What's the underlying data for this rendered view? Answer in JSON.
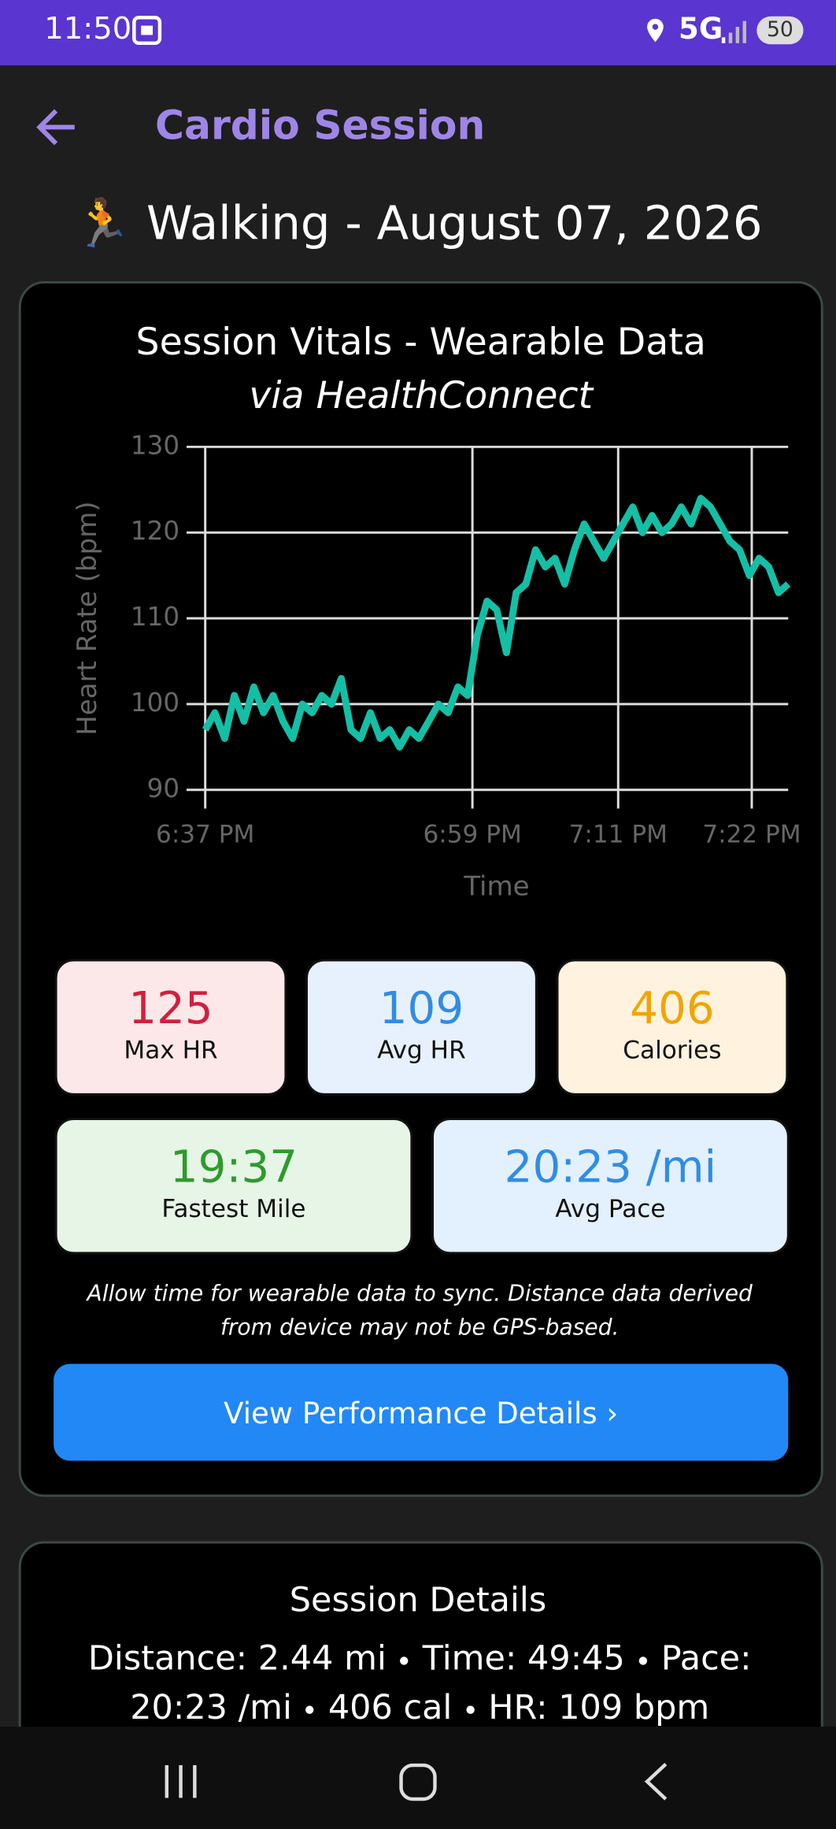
{
  "status_bar": {
    "time": "11:50",
    "network": "5G",
    "battery": "50"
  },
  "header": {
    "title": "Cardio Session"
  },
  "page_title": "🏃 Walking - August 07, 2026",
  "chart_data": {
    "type": "line",
    "title": "Session Vitals - Wearable Data",
    "subtitle": "via HealthConnect",
    "x_label": "Time",
    "y_label": "Heart Rate (bpm)",
    "color": "#14bfa6",
    "grid": true,
    "x": [
      1117,
      1117.8,
      1118.6,
      1119.4,
      1120.2,
      1121,
      1121.8,
      1122.6,
      1123.4,
      1124.2,
      1125,
      1125.8,
      1126.6,
      1127.4,
      1128.2,
      1129,
      1129.8,
      1130.6,
      1131.4,
      1132.2,
      1133,
      1133.8,
      1134.6,
      1135.4,
      1136.2,
      1137,
      1137.8,
      1138.6,
      1139.4,
      1140.2,
      1141,
      1141.8,
      1142.6,
      1143.4,
      1144.2,
      1145,
      1145.8,
      1146.6,
      1147.4,
      1148.2,
      1149,
      1149.8,
      1150.6,
      1151.4,
      1152.2,
      1153,
      1153.8,
      1154.6,
      1155.4,
      1156.2,
      1157,
      1157.8,
      1158.6,
      1159.4,
      1160.2,
      1161,
      1161.8,
      1162.6,
      1163.4,
      1164.2,
      1165
    ],
    "values": [
      97,
      99,
      96,
      101,
      98,
      102,
      99,
      101,
      98,
      96,
      100,
      99,
      101,
      100,
      103,
      97,
      96,
      99,
      96,
      97,
      95,
      97,
      96,
      98,
      100,
      99,
      102,
      101,
      108,
      112,
      111,
      106,
      113,
      114,
      118,
      116,
      117,
      114,
      118,
      121,
      119,
      117,
      119,
      121,
      123,
      120,
      122,
      120,
      121,
      123,
      121,
      124,
      123,
      121,
      119,
      118,
      115,
      117,
      116,
      113,
      114
    ],
    "xlim": [
      1117,
      1165
    ],
    "xticks": [
      {
        "value": 1117,
        "label": "6:37 PM"
      },
      {
        "value": 1139,
        "label": "6:59 PM"
      },
      {
        "value": 1151,
        "label": "7:11 PM"
      },
      {
        "value": 1162,
        "label": "7:22 PM"
      }
    ],
    "ylim": [
      90,
      130
    ],
    "yticks": [
      90,
      100,
      110,
      120,
      130
    ]
  },
  "stats": [
    {
      "value": "125",
      "label": "Max HR"
    },
    {
      "value": "109",
      "label": "Avg HR"
    },
    {
      "value": "406",
      "label": "Calories"
    },
    {
      "value": "19:37",
      "label": "Fastest Mile"
    },
    {
      "value": "20:23 /mi",
      "label": "Avg Pace"
    }
  ],
  "note": "Allow time for wearable data to sync. Distance data derived from device may not be GPS-based.",
  "button": "View Performance Details ›",
  "session_details": {
    "title": "Session Details",
    "items": [
      "Distance: 2.44 mi",
      "Time: 49:45",
      "Pace: 20:23 /mi",
      "406 cal",
      "HR: 109 bpm"
    ]
  }
}
